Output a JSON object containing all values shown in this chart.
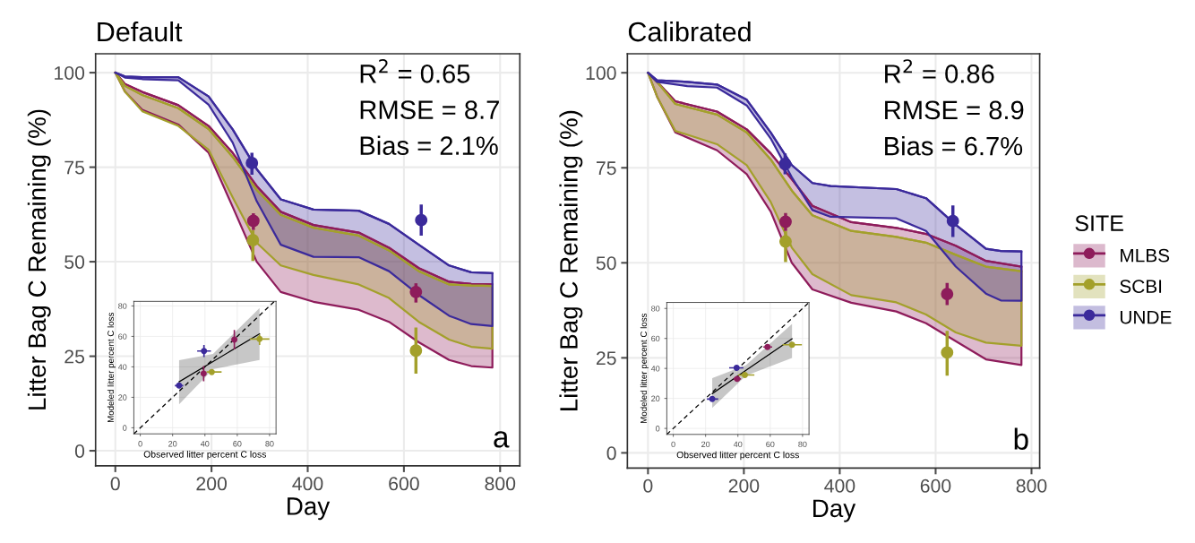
{
  "chart_data": [
    {
      "type": "line",
      "title": "Default",
      "xlabel": "Day",
      "ylabel": "Litter Bag C Remaining (%)",
      "xlim": [
        -41,
        841
      ],
      "ylim": [
        -4,
        105
      ],
      "xticks": [
        0,
        200,
        400,
        600,
        800
      ],
      "yticks": [
        0,
        25,
        50,
        75,
        100
      ],
      "grid": true,
      "marker": "circle",
      "legend": "right",
      "legend_title": "SITE",
      "annotations": [
        "R$^{2}$ = 0.65",
        "RMSE = 8.7",
        "Bias = 2.1%",
        "a"
      ],
      "series": [
        {
          "name": "MLBS",
          "marker": "none",
          "color": "#8e1c5b",
          "x": [
            0,
            20,
            56,
            131,
            194,
            244,
            294,
            344,
            412,
            506,
            569,
            631,
            694,
            740,
            784
          ],
          "values": [
            100,
            97,
            94.9,
            91.4,
            85.9,
            78.8,
            70,
            63.2,
            59.7,
            57.7,
            53.7,
            48.3,
            44.7,
            44.1,
            44
          ],
          "upper": [
            100,
            97,
            94.9,
            91.4,
            85.9,
            78.8,
            70,
            63.2,
            59.7,
            57.7,
            53.7,
            48.3,
            44.7,
            44.1,
            44
          ],
          "lower": [
            100,
            95,
            90.2,
            86.3,
            78.8,
            64.5,
            50,
            42,
            39.4,
            37.3,
            34.1,
            28.7,
            24,
            22.4,
            22
          ]
        },
        {
          "name": "SCBI",
          "marker": "none",
          "color": "#a3a02b",
          "x": [
            0,
            20,
            56,
            131,
            194,
            244,
            294,
            344,
            412,
            506,
            569,
            631,
            694,
            740,
            784
          ],
          "values": [
            100,
            96.5,
            94.1,
            90.6,
            85.1,
            77.7,
            69,
            62.4,
            59,
            56.9,
            53,
            47.5,
            44,
            43.7,
            43.6
          ],
          "upper": [
            100,
            96.5,
            94.1,
            90.6,
            85.1,
            77.7,
            69,
            62.4,
            59,
            56.9,
            53,
            47.5,
            44,
            43.7,
            43.6
          ],
          "lower": [
            100,
            95,
            89.8,
            85.9,
            79.6,
            67,
            55,
            49,
            46.5,
            44,
            40.4,
            34.1,
            29.4,
            27.5,
            27
          ]
        },
        {
          "name": "UNDE",
          "marker": "none",
          "color": "#3b2a9b",
          "x": [
            0,
            20,
            56,
            131,
            194,
            244,
            294,
            344,
            412,
            506,
            569,
            631,
            694,
            740,
            784
          ],
          "values": [
            100,
            99,
            98.8,
            98.8,
            93.7,
            85,
            74.5,
            66.5,
            63.8,
            63.5,
            60,
            54.5,
            49,
            47.2,
            47
          ],
          "upper": [
            100,
            99,
            98.8,
            98.8,
            93.7,
            85,
            74.5,
            66.5,
            63.8,
            63.5,
            60,
            54.5,
            49,
            47.2,
            47
          ],
          "lower": [
            100,
            98.7,
            98.3,
            98,
            91.5,
            81.5,
            66,
            54.5,
            51.3,
            51.2,
            47.5,
            41.2,
            35.7,
            33.5,
            33
          ]
        },
        {
          "type": "scatter",
          "color": "#8e1c5b",
          "x": [
            287,
            625
          ],
          "values": [
            60.8,
            42
          ],
          "errors": [
            [
              58.4,
              62.8
            ],
            [
              39.2,
              44.3
            ]
          ]
        },
        {
          "type": "scatter",
          "color": "#a3a02b",
          "x": [
            286,
            625
          ],
          "values": [
            55.7,
            26.5
          ],
          "errors": [
            [
              50.2,
              58.3
            ],
            [
              20.4,
              32.6
            ]
          ]
        },
        {
          "type": "scatter",
          "color": "#3b2a9b",
          "x": [
            284,
            636
          ],
          "values": [
            76.1,
            61
          ],
          "errors": [
            [
              73,
              78.8
            ],
            [
              56.9,
              65.1
            ]
          ]
        }
      ]
    },
    {
      "type": "scatter",
      "xlabel": "Observed litter percent C loss",
      "ylabel": "Modeled litter percent C loss",
      "xlim": [
        -4,
        84
      ],
      "ylim": [
        -4,
        83
      ],
      "xticks": [
        0,
        20,
        40,
        60,
        80
      ],
      "yticks": [
        0,
        20,
        40,
        60,
        80
      ],
      "grid": true,
      "marker": "circle",
      "series": [
        {
          "type": "line",
          "marker": "none",
          "color": "#000000",
          "line_style": "dashed",
          "x": [
            -4,
            83
          ],
          "values": [
            -4,
            83
          ]
        },
        {
          "type": "line",
          "marker": "none",
          "color": "#000000",
          "line_style": "solid",
          "x": [
            24,
            45,
            73.8
          ],
          "values": [
            30.2,
            43.5,
            61.7
          ],
          "lower": [
            15.4,
            38.5,
            44.5
          ],
          "upper": [
            44.3,
            48.5,
            78.7
          ]
        },
        {
          "color": "#8e1c5b",
          "x": [
            39.2,
            58.2
          ],
          "values": [
            35.6,
            57.9
          ],
          "errors": [
            [
              30.6,
              40.5
            ],
            [
              51.4,
              64.2
            ]
          ]
        },
        {
          "color": "#a3a02b",
          "x": [
            44.2,
            73.8
          ],
          "values": [
            36.6,
            58.3
          ],
          "errors": [
            null,
            [
              54.3,
              61.3
            ]
          ],
          "xerrors": [
            [
              41,
              50.3
            ],
            [
              67.8,
              79.9
            ]
          ]
        },
        {
          "color": "#3b2a9b",
          "x": [
            24,
            39.4
          ],
          "values": [
            27.7,
            50.4
          ],
          "errors": [
            null,
            [
              46.4,
              54.3
            ]
          ],
          "xerrors": [
            [
              21.4,
              26.6
            ],
            [
              35.2,
              43.7
            ]
          ]
        }
      ]
    },
    {
      "type": "line",
      "title": "Calibrated",
      "xlabel": "Day",
      "ylabel": "Litter Bag C Remaining (%)",
      "xlim": [
        -43,
        817
      ],
      "ylim": [
        -4,
        105
      ],
      "xticks": [
        0,
        200,
        400,
        600,
        800
      ],
      "yticks": [
        0,
        25,
        50,
        75,
        100
      ],
      "grid": true,
      "marker": "circle",
      "annotations": [
        "R$^{2}$ = 0.86",
        "RMSE = 8.9",
        "Bias = 6.7%",
        "b"
      ],
      "series": [
        {
          "marker": "none",
          "color": "#8e1c5b",
          "x": [
            0,
            19,
            57,
            144,
            206,
            256,
            300,
            343,
            424,
            518,
            580,
            642,
            705,
            779
          ],
          "values": [
            100,
            97.6,
            92.5,
            89.8,
            85.1,
            78.8,
            72,
            65,
            60.7,
            59.2,
            57.6,
            54.5,
            50.5,
            49
          ],
          "upper": [
            100,
            97.6,
            92.5,
            89.8,
            85.1,
            78.8,
            72,
            65,
            60.7,
            59.2,
            57.6,
            54.5,
            50.5,
            49
          ],
          "lower": [
            100,
            93.7,
            84.3,
            79.6,
            73.3,
            63.5,
            50,
            43,
            39.5,
            37.2,
            34.1,
            29.4,
            24.6,
            23.1
          ]
        },
        {
          "marker": "none",
          "color": "#a3a02b",
          "x": [
            0,
            19,
            57,
            144,
            206,
            256,
            300,
            343,
            424,
            518,
            580,
            642,
            705,
            779
          ],
          "values": [
            100,
            97.6,
            91.8,
            89,
            84.3,
            77.2,
            69,
            62.5,
            58.4,
            56.8,
            55.3,
            52.1,
            49,
            47.8
          ],
          "upper": [
            100,
            97.6,
            91.8,
            89,
            84.3,
            77.2,
            69,
            62.5,
            58.4,
            56.8,
            55.3,
            52.1,
            49,
            47.8
          ],
          "lower": [
            100,
            93.7,
            84.7,
            81.2,
            75.7,
            66,
            54,
            47,
            41.5,
            39.6,
            36.4,
            31.7,
            29,
            28.2
          ]
        },
        {
          "marker": "none",
          "color": "#3b2a9b",
          "x": [
            0,
            19,
            82,
            144,
            206,
            256,
            300,
            343,
            381,
            518,
            580,
            642,
            705,
            736,
            779
          ],
          "values": [
            100,
            98,
            97.6,
            96.9,
            92.9,
            84.3,
            75.7,
            71,
            70.2,
            69.4,
            67,
            60,
            53.7,
            53.1,
            53
          ],
          "upper": [
            100,
            98,
            97.6,
            96.9,
            92.9,
            84.3,
            75.7,
            71,
            70.2,
            69.4,
            67,
            60,
            53.7,
            53.1,
            53
          ],
          "lower": [
            100,
            97.6,
            96.5,
            96.1,
            91.4,
            82.7,
            72.5,
            63.9,
            62.1,
            61.7,
            58.4,
            49,
            41.9,
            40.1,
            40
          ]
        },
        {
          "type": "scatter",
          "color": "#8e1c5b",
          "x": [
            287,
            624
          ],
          "values": [
            60.8,
            41.8
          ],
          "errors": [
            [
              58.4,
              63.1
            ],
            [
              38.9,
              44.7
            ]
          ]
        },
        {
          "type": "scatter",
          "color": "#a3a02b",
          "x": [
            287,
            624
          ],
          "values": [
            55.6,
            26.4
          ],
          "errors": [
            [
              50.2,
              58.3
            ],
            [
              20.3,
              32.1
            ]
          ]
        },
        {
          "type": "scatter",
          "color": "#3b2a9b",
          "x": [
            286,
            636
          ],
          "values": [
            76,
            61
          ],
          "errors": [
            [
              73.3,
              78.8
            ],
            [
              56.8,
              65.1
            ]
          ]
        }
      ]
    },
    {
      "type": "scatter",
      "xlabel": "Observed litter percent C loss",
      "ylabel": "Modeled litter percent C loss",
      "xlim": [
        -4,
        84
      ],
      "ylim": [
        -4,
        84
      ],
      "xticks": [
        0,
        20,
        40,
        60,
        80
      ],
      "yticks": [
        0,
        20,
        40,
        60,
        80
      ],
      "grid": true,
      "marker": "circle",
      "series": [
        {
          "type": "line",
          "marker": "none",
          "color": "#000000",
          "line_style": "dashed",
          "x": [
            -4,
            84
          ],
          "values": [
            -4,
            84
          ]
        },
        {
          "type": "line",
          "marker": "none",
          "color": "#000000",
          "line_style": "solid",
          "x": [
            24.1,
            45,
            73.5
          ],
          "values": [
            23.2,
            38.7,
            59.8
          ],
          "lower": [
            13.7,
            35.2,
            46.9
          ],
          "upper": [
            33.5,
            42.2,
            69.7
          ]
        },
        {
          "color": "#8e1c5b",
          "x": [
            39.5,
            58.3
          ],
          "values": [
            33,
            54.3
          ],
          "xerrors": [
            [
              37.3,
              41.9
            ],
            [
              55.7,
              61.2
            ]
          ]
        },
        {
          "color": "#a3a02b",
          "x": [
            44.3,
            73.5
          ],
          "values": [
            35.6,
            55.8
          ],
          "xerrors": [
            [
              40.1,
              50.2
            ],
            [
              67.6,
              79.6
            ]
          ]
        },
        {
          "color": "#3b2a9b",
          "x": [
            24.1,
            39.2
          ],
          "values": [
            19.6,
            40.4
          ],
          "xerrors": [
            [
              20.8,
              27.8
            ],
            [
              34.6,
              43.4
            ]
          ]
        }
      ]
    }
  ]
}
